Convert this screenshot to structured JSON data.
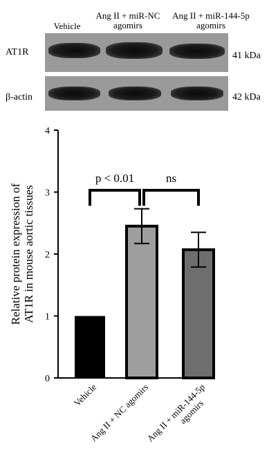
{
  "blot": {
    "lanes": [
      "Vehicle",
      "Ang II + miR-NC agomirs",
      "Ang II + miR-144-5p agomirs"
    ],
    "lane_header_lines": [
      [
        "Vehicle"
      ],
      [
        "Ang II + miR-NC",
        "agomirs"
      ],
      [
        "Ang II + miR-144-5p",
        "agomirs"
      ]
    ],
    "rows": [
      {
        "label": "AT1R",
        "size": "41 kDa"
      },
      {
        "label": "β-actin",
        "size": "42 kDa"
      }
    ]
  },
  "chart_data": {
    "type": "bar",
    "categories": [
      "Vehicle",
      "Ang II + NC agomirs",
      "Ang II + miR-144-5p agomirs"
    ],
    "category_label_lines": [
      [
        "Vehicle"
      ],
      [
        "Ang II + NC agomirs"
      ],
      [
        "Ang II + miR-144-5p",
        "agomirs"
      ]
    ],
    "values": [
      1.0,
      2.45,
      2.07
    ],
    "errors": [
      0,
      0.28,
      0.28
    ],
    "colors": [
      "#000000",
      "#9e9e9e",
      "#6e6e6e"
    ],
    "ylabel_lines": [
      "Relative protein expression of",
      "AT1R in mouse aortic tissues"
    ],
    "ylim": [
      0,
      4
    ],
    "yticks": [
      "0",
      "1",
      "2",
      "3",
      "4"
    ],
    "grid": false,
    "annotations": [
      {
        "from": 0,
        "to": 1,
        "text": "p < 0.01",
        "level": 3.03
      },
      {
        "from": 1,
        "to": 2,
        "text": "ns",
        "level": 3.03
      }
    ]
  }
}
